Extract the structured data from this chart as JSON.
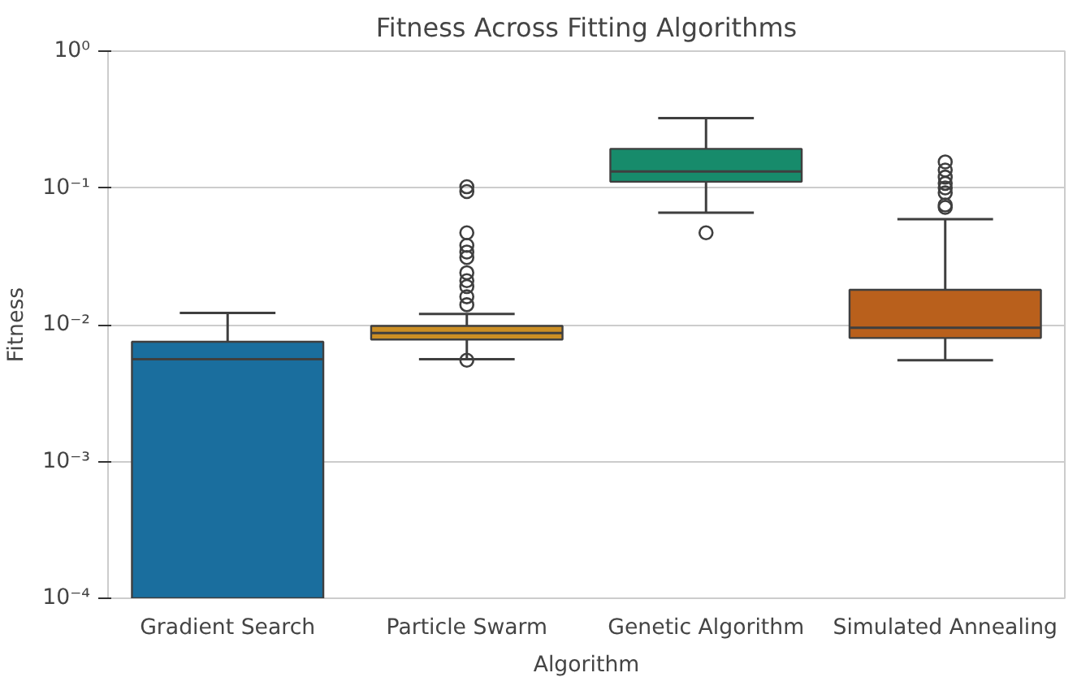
{
  "chart_data": {
    "type": "box",
    "title": "Fitness Across Fitting Algorithms",
    "xlabel": "Algorithm",
    "ylabel": "Fitness",
    "categories": [
      "Gradient Search",
      "Particle Swarm",
      "Genetic Algorithm",
      "Simulated Annealing"
    ],
    "colors": [
      "#1a6e9e",
      "#cc8f24",
      "#178b6b",
      "#b9601c"
    ],
    "boxes": [
      {
        "low": 0.0001,
        "q1": 0.0001,
        "median": 0.0056,
        "q3": 0.0075,
        "high": 0.0122
      },
      {
        "low": 0.0056,
        "q1": 0.0078,
        "median": 0.0087,
        "q3": 0.0098,
        "high": 0.012,
        "outliers": [
          0.0055,
          0.014,
          0.016,
          0.019,
          0.021,
          0.024,
          0.031,
          0.034,
          0.038,
          0.047,
          0.094,
          0.102
        ]
      },
      {
        "low": 0.066,
        "q1": 0.111,
        "median": 0.132,
        "q3": 0.193,
        "high": 0.324,
        "outliers": [
          0.047
        ]
      },
      {
        "low": 0.0055,
        "q1": 0.008,
        "median": 0.0095,
        "q3": 0.018,
        "high": 0.059,
        "outliers": [
          0.072,
          0.075,
          0.092,
          0.1,
          0.108,
          0.12,
          0.135,
          0.155
        ]
      }
    ],
    "log": "y",
    "ylim": [
      0.0001,
      1
    ],
    "yticks": [
      {
        "value": 0.0001,
        "label": "10⁻⁴"
      },
      {
        "value": 0.001,
        "label": "10⁻³"
      },
      {
        "value": 0.01,
        "label": "10⁻²"
      },
      {
        "value": 0.1,
        "label": "10⁻¹"
      },
      {
        "value": 1,
        "label": "10⁰"
      }
    ],
    "grid": "y",
    "marker": "circle"
  }
}
